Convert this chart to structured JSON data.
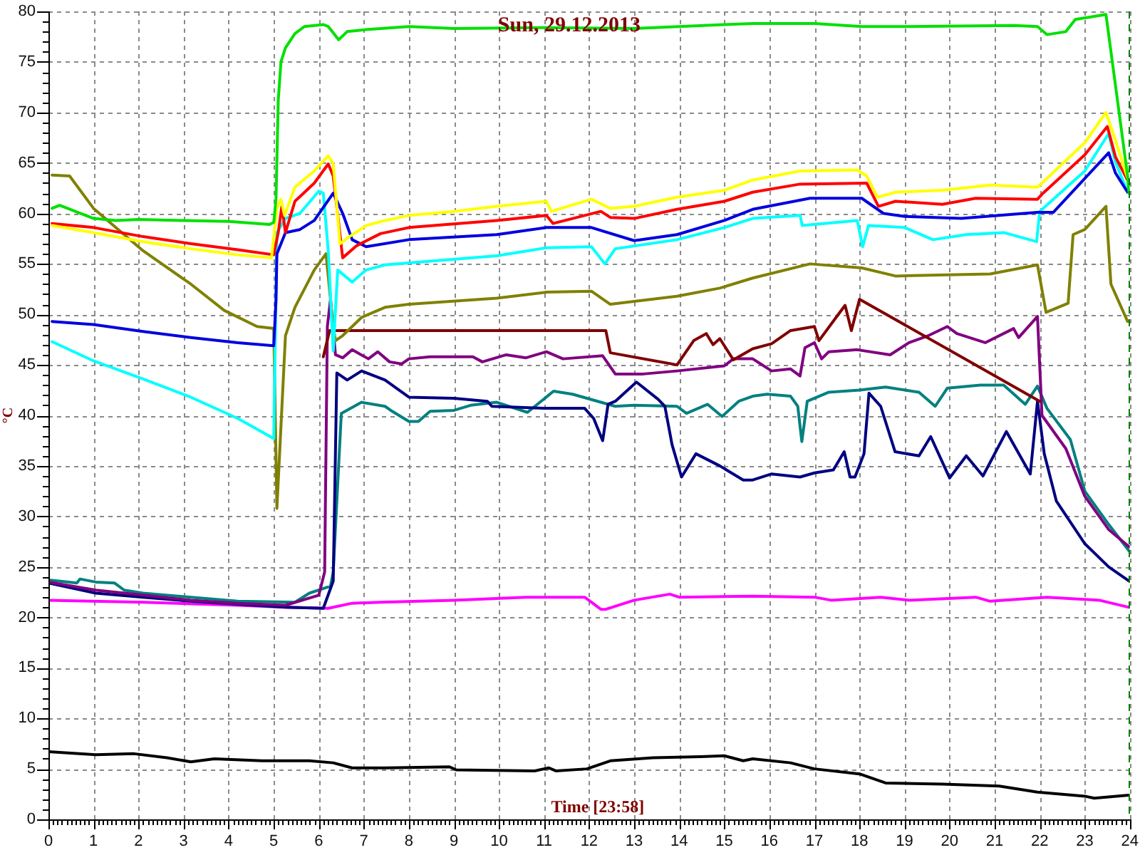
{
  "chart_data": {
    "type": "line",
    "title": "Sun, 29.12.2013",
    "xlabel": "Time [23:58]",
    "ylabel": "°C",
    "xlim": [
      0,
      24
    ],
    "ylim": [
      0,
      80
    ],
    "xticks": [
      0,
      {
        "value": 0.1,
        "label": null
      },
      {
        "value": 0.2,
        "label": null
      },
      {
        "value": 0.3,
        "label": null
      },
      {
        "value": 0.4,
        "label": null
      },
      {
        "value": 0.5,
        "label": null
      },
      {
        "value": 0.6,
        "label": null
      },
      {
        "value": 0.7,
        "label": null
      },
      {
        "value": 0.8,
        "label": null
      },
      {
        "value": 0.9,
        "label": null
      },
      1,
      {
        "value": 1.1,
        "label": null
      },
      {
        "value": 1.2,
        "label": null
      },
      {
        "value": 1.3,
        "label": null
      },
      {
        "value": 1.4,
        "label": null
      },
      {
        "value": 1.5,
        "label": null
      },
      {
        "value": 1.6,
        "label": null
      },
      {
        "value": 1.7,
        "label": null
      },
      {
        "value": 1.8,
        "label": null
      },
      {
        "value": 1.9,
        "label": null
      },
      2,
      {
        "value": 2.1,
        "label": null
      },
      {
        "value": 2.2,
        "label": null
      },
      {
        "value": 2.3,
        "label": null
      },
      {
        "value": 2.4,
        "label": null
      },
      {
        "value": 2.5,
        "label": null
      },
      {
        "value": 2.6,
        "label": null
      },
      {
        "value": 2.7,
        "label": null
      },
      {
        "value": 2.8,
        "label": null
      },
      {
        "value": 2.9,
        "label": null
      },
      3,
      {
        "value": 3.1,
        "label": null
      },
      {
        "value": 3.2,
        "label": null
      },
      {
        "value": 3.3,
        "label": null
      },
      {
        "value": 3.4,
        "label": null
      },
      {
        "value": 3.5,
        "label": null
      },
      {
        "value": 3.6,
        "label": null
      },
      {
        "value": 3.7,
        "label": null
      },
      {
        "value": 3.8,
        "label": null
      },
      {
        "value": 3.9,
        "label": null
      },
      4,
      {
        "value": 4.1,
        "label": null
      },
      {
        "value": 4.2,
        "label": null
      },
      {
        "value": 4.3,
        "label": null
      },
      {
        "value": 4.4,
        "label": null
      },
      {
        "value": 4.5,
        "label": null
      },
      {
        "value": 4.6,
        "label": null
      },
      {
        "value": 4.7,
        "label": null
      },
      {
        "value": 4.8,
        "label": null
      },
      {
        "value": 4.9,
        "label": null
      },
      5,
      {
        "value": 5.1,
        "label": null
      },
      {
        "value": 5.2,
        "label": null
      },
      {
        "value": 5.3,
        "label": null
      },
      {
        "value": 5.4,
        "label": null
      },
      {
        "value": 5.5,
        "label": null
      },
      {
        "value": 5.6,
        "label": null
      },
      {
        "value": 5.7,
        "label": null
      },
      {
        "value": 5.8,
        "label": null
      },
      {
        "value": 5.9,
        "label": null
      },
      6,
      {
        "value": 6.1,
        "label": null
      },
      {
        "value": 6.2,
        "label": null
      },
      {
        "value": 6.3,
        "label": null
      },
      {
        "value": 6.4,
        "label": null
      },
      {
        "value": 6.5,
        "label": null
      },
      {
        "value": 6.6,
        "label": null
      },
      {
        "value": 6.7,
        "label": null
      },
      {
        "value": 6.8,
        "label": null
      },
      {
        "value": 6.9,
        "label": null
      },
      7,
      {
        "value": 7.1,
        "label": null
      },
      {
        "value": 7.2,
        "label": null
      },
      {
        "value": 7.3,
        "label": null
      },
      {
        "value": 7.4,
        "label": null
      },
      {
        "value": 7.5,
        "label": null
      },
      {
        "value": 7.6,
        "label": null
      },
      {
        "value": 7.7,
        "label": null
      },
      {
        "value": 7.8,
        "label": null
      },
      {
        "value": 7.9,
        "label": null
      },
      8,
      {
        "value": 8.1,
        "label": null
      },
      {
        "value": 8.2,
        "label": null
      },
      {
        "value": 8.3,
        "label": null
      },
      {
        "value": 8.4,
        "label": null
      },
      {
        "value": 8.5,
        "label": null
      },
      {
        "value": 8.6,
        "label": null
      },
      {
        "value": 8.7,
        "label": null
      },
      {
        "value": 8.8,
        "label": null
      },
      {
        "value": 8.9,
        "label": null
      },
      9,
      {
        "value": 9.1,
        "label": null
      },
      {
        "value": 9.2,
        "label": null
      },
      {
        "value": 9.3,
        "label": null
      },
      {
        "value": 9.4,
        "label": null
      },
      {
        "value": 9.5,
        "label": null
      },
      {
        "value": 9.6,
        "label": null
      },
      {
        "value": 9.7,
        "label": null
      },
      {
        "value": 9.8,
        "label": null
      },
      {
        "value": 9.9,
        "label": null
      },
      10,
      {
        "value": 10.1,
        "label": null
      },
      {
        "value": 10.2,
        "label": null
      },
      {
        "value": 10.3,
        "label": null
      },
      {
        "value": 10.4,
        "label": null
      },
      {
        "value": 10.5,
        "label": null
      },
      {
        "value": 10.6,
        "label": null
      },
      {
        "value": 10.7,
        "label": null
      },
      {
        "value": 10.8,
        "label": null
      },
      {
        "value": 10.9,
        "label": null
      },
      11,
      {
        "value": 11.1,
        "label": null
      },
      {
        "value": 11.2,
        "label": null
      },
      {
        "value": 11.3,
        "label": null
      },
      {
        "value": 11.4,
        "label": null
      },
      {
        "value": 11.5,
        "label": null
      },
      {
        "value": 11.6,
        "label": null
      },
      {
        "value": 11.7,
        "label": null
      },
      {
        "value": 11.8,
        "label": null
      },
      {
        "value": 11.9,
        "label": null
      },
      12,
      {
        "value": 12.1,
        "label": null
      },
      {
        "value": 12.2,
        "label": null
      },
      {
        "value": 12.3,
        "label": null
      },
      {
        "value": 12.4,
        "label": null
      },
      {
        "value": 12.5,
        "label": null
      },
      {
        "value": 12.6,
        "label": null
      },
      {
        "value": 12.7,
        "label": null
      },
      {
        "value": 12.8,
        "label": null
      },
      {
        "value": 12.9,
        "label": null
      },
      13,
      {
        "value": 13.1,
        "label": null
      },
      {
        "value": 13.2,
        "label": null
      },
      {
        "value": 13.3,
        "label": null
      },
      {
        "value": 13.4,
        "label": null
      },
      {
        "value": 13.5,
        "label": null
      },
      {
        "value": 13.6,
        "label": null
      },
      {
        "value": 13.7,
        "label": null
      },
      {
        "value": 13.8,
        "label": null
      },
      {
        "value": 13.9,
        "label": null
      },
      14,
      {
        "value": 14.1,
        "label": null
      },
      {
        "value": 14.2,
        "label": null
      },
      {
        "value": 14.3,
        "label": null
      },
      {
        "value": 14.4,
        "label": null
      },
      {
        "value": 14.5,
        "label": null
      },
      {
        "value": 14.6,
        "label": null
      },
      {
        "value": 14.7,
        "label": null
      },
      {
        "value": 14.8,
        "label": null
      },
      {
        "value": 14.9,
        "label": null
      },
      15,
      {
        "value": 15.1,
        "label": null
      },
      {
        "value": 15.2,
        "label": null
      },
      {
        "value": 15.3,
        "label": null
      },
      {
        "value": 15.4,
        "label": null
      },
      {
        "value": 15.5,
        "label": null
      },
      {
        "value": 15.6,
        "label": null
      },
      {
        "value": 15.7,
        "label": null
      },
      {
        "value": 15.8,
        "label": null
      },
      {
        "value": 15.9,
        "label": null
      },
      16,
      {
        "value": 16.1,
        "label": null
      },
      {
        "value": 16.2,
        "label": null
      },
      {
        "value": 16.3,
        "label": null
      },
      {
        "value": 16.4,
        "label": null
      },
      {
        "value": 16.5,
        "label": null
      },
      {
        "value": 16.6,
        "label": null
      },
      {
        "value": 16.7,
        "label": null
      },
      {
        "value": 16.8,
        "label": null
      },
      {
        "value": 16.9,
        "label": null
      },
      17,
      {
        "value": 17.1,
        "label": null
      },
      {
        "value": 17.2,
        "label": null
      },
      {
        "value": 17.3,
        "label": null
      },
      {
        "value": 17.4,
        "label": null
      },
      {
        "value": 17.5,
        "label": null
      },
      {
        "value": 17.6,
        "label": null
      },
      {
        "value": 17.7,
        "label": null
      },
      {
        "value": 17.8,
        "label": null
      },
      {
        "value": 17.9,
        "label": null
      },
      18,
      {
        "value": 18.1,
        "label": null
      },
      {
        "value": 18.2,
        "label": null
      },
      {
        "value": 18.3,
        "label": null
      },
      {
        "value": 18.4,
        "label": null
      },
      {
        "value": 18.5,
        "label": null
      },
      {
        "value": 18.6,
        "label": null
      },
      {
        "value": 18.7,
        "label": null
      },
      {
        "value": 18.8,
        "label": null
      },
      {
        "value": 18.9,
        "label": null
      },
      19,
      {
        "value": 19.1,
        "label": null
      },
      {
        "value": 19.2,
        "label": null
      },
      {
        "value": 19.3,
        "label": null
      },
      {
        "value": 19.4,
        "label": null
      },
      {
        "value": 19.5,
        "label": null
      },
      {
        "value": 19.6,
        "label": null
      },
      {
        "value": 19.7,
        "label": null
      },
      {
        "value": 19.8,
        "label": null
      },
      {
        "value": 19.9,
        "label": null
      },
      20,
      {
        "value": 20.1,
        "label": null
      },
      {
        "value": 20.2,
        "label": null
      },
      {
        "value": 20.3,
        "label": null
      },
      {
        "value": 20.4,
        "label": null
      },
      {
        "value": 20.5,
        "label": null
      },
      {
        "value": 20.6,
        "label": null
      },
      {
        "value": 20.7,
        "label": null
      },
      {
        "value": 20.8,
        "label": null
      },
      {
        "value": 20.9,
        "label": null
      },
      21,
      {
        "value": 21.1,
        "label": null
      },
      {
        "value": 21.2,
        "label": null
      },
      {
        "value": 21.3,
        "label": null
      },
      {
        "value": 21.4,
        "label": null
      },
      {
        "value": 21.5,
        "label": null
      },
      {
        "value": 21.6,
        "label": null
      },
      {
        "value": 21.7,
        "label": null
      },
      {
        "value": 21.8,
        "label": null
      },
      {
        "value": 21.9,
        "label": null
      },
      22,
      {
        "value": 22.1,
        "label": null
      },
      {
        "value": 22.2,
        "label": null
      },
      {
        "value": 22.3,
        "label": null
      },
      {
        "value": 22.4,
        "label": null
      },
      {
        "value": 22.5,
        "label": null
      },
      {
        "value": 22.6,
        "label": null
      },
      {
        "value": 22.7,
        "label": null
      },
      {
        "value": 22.8,
        "label": null
      },
      {
        "value": 22.9,
        "label": null
      },
      23,
      {
        "value": 23.1,
        "label": null
      },
      {
        "value": 23.2,
        "label": null
      },
      {
        "value": 23.3,
        "label": null
      },
      {
        "value": 23.4,
        "label": null
      },
      {
        "value": 23.5,
        "label": null
      },
      {
        "value": 23.6,
        "label": null
      },
      {
        "value": 23.7,
        "label": null
      },
      {
        "value": 23.8,
        "label": null
      },
      {
        "value": 23.9,
        "label": null
      },
      24
    ],
    "yticks": [
      0,
      {
        "value": 1,
        "label": null
      },
      {
        "value": 2,
        "label": null
      },
      {
        "value": 3,
        "label": null
      },
      {
        "value": 4,
        "label": null
      },
      5,
      {
        "value": 6,
        "label": null
      },
      {
        "value": 7,
        "label": null
      },
      {
        "value": 8,
        "label": null
      },
      {
        "value": 9,
        "label": null
      },
      10,
      {
        "value": 11,
        "label": null
      },
      {
        "value": 12,
        "label": null
      },
      {
        "value": 13,
        "label": null
      },
      {
        "value": 14,
        "label": null
      },
      15,
      {
        "value": 16,
        "label": null
      },
      {
        "value": 17,
        "label": null
      },
      {
        "value": 18,
        "label": null
      },
      {
        "value": 19,
        "label": null
      },
      20,
      {
        "value": 21,
        "label": null
      },
      {
        "value": 22,
        "label": null
      },
      {
        "value": 23,
        "label": null
      },
      {
        "value": 24,
        "label": null
      },
      25,
      {
        "value": 26,
        "label": null
      },
      {
        "value": 27,
        "label": null
      },
      {
        "value": 28,
        "label": null
      },
      {
        "value": 29,
        "label": null
      },
      30,
      {
        "value": 31,
        "label": null
      },
      {
        "value": 32,
        "label": null
      },
      {
        "value": 33,
        "label": null
      },
      {
        "value": 34,
        "label": null
      },
      35,
      {
        "value": 36,
        "label": null
      },
      {
        "value": 37,
        "label": null
      },
      {
        "value": 38,
        "label": null
      },
      {
        "value": 39,
        "label": null
      },
      40,
      {
        "value": 41,
        "label": null
      },
      {
        "value": 42,
        "label": null
      },
      {
        "value": 43,
        "label": null
      },
      {
        "value": 44,
        "label": null
      },
      45,
      {
        "value": 46,
        "label": null
      },
      {
        "value": 47,
        "label": null
      },
      {
        "value": 48,
        "label": null
      },
      {
        "value": 49,
        "label": null
      },
      50,
      {
        "value": 51,
        "label": null
      },
      {
        "value": 52,
        "label": null
      },
      {
        "value": 53,
        "label": null
      },
      {
        "value": 54,
        "label": null
      },
      55,
      {
        "value": 56,
        "label": null
      },
      {
        "value": 57,
        "label": null
      },
      {
        "value": 58,
        "label": null
      },
      {
        "value": 59,
        "label": null
      },
      60,
      {
        "value": 61,
        "label": null
      },
      {
        "value": 62,
        "label": null
      },
      {
        "value": 63,
        "label": null
      },
      {
        "value": 64,
        "label": null
      },
      65,
      {
        "value": 66,
        "label": null
      },
      {
        "value": 67,
        "label": null
      },
      {
        "value": 68,
        "label": null
      },
      {
        "value": 69,
        "label": null
      },
      70,
      {
        "value": 71,
        "label": null
      },
      {
        "value": 72,
        "label": null
      },
      {
        "value": 73,
        "label": null
      },
      {
        "value": 74,
        "label": null
      },
      75,
      {
        "value": 76,
        "label": null
      },
      {
        "value": 77,
        "label": null
      },
      {
        "value": 78,
        "label": null
      },
      {
        "value": 79,
        "label": null
      },
      80
    ],
    "grid": true,
    "legend": false,
    "marker": "none",
    "line_style": "solid",
    "ref_lines": [
      {
        "axis": "x",
        "value": 23.97,
        "color": "#008000",
        "line_style": "dashed"
      }
    ],
    "series": [
      {
        "color": "#00e000",
        "x": [
          0.08,
          0.25,
          1,
          1.5,
          2,
          3,
          4,
          4.9,
          5.0,
          5.05,
          5.1,
          5.16,
          5.26,
          5.47,
          5.68,
          6.1,
          6.21,
          6.44,
          6.63,
          7.05,
          8,
          9,
          11,
          13,
          15,
          15.63,
          17,
          18.05,
          19.1,
          21.42,
          21.95,
          22.16,
          22.58,
          22.79,
          23.47,
          23.95,
          23.98
        ],
        "values": [
          60.5,
          60.8,
          59.5,
          59.3,
          59.4,
          59.3,
          59.2,
          58.9,
          59.1,
          61.4,
          71.2,
          75.0,
          76.4,
          77.8,
          78.5,
          78.7,
          78.5,
          77.2,
          78.0,
          78.2,
          78.5,
          78.3,
          78.4,
          78.3,
          78.7,
          78.8,
          78.8,
          78.5,
          78.5,
          78.6,
          78.5,
          77.7,
          78.0,
          79.2,
          79.7,
          63.7,
          62.0
        ]
      },
      {
        "color": "#ffff00",
        "x": [
          0.08,
          1,
          2.1,
          3.16,
          4.2,
          4.95,
          5.07,
          5.16,
          5.24,
          5.47,
          5.9,
          6.21,
          6.32,
          6.47,
          6.68,
          7.05,
          7.47,
          8,
          9,
          9.95,
          11.05,
          11.16,
          12.05,
          12.47,
          13,
          13.95,
          15,
          15.63,
          16.68,
          17.95,
          18.16,
          18.4,
          18.8,
          19.84,
          20.9,
          21.95,
          22.05,
          23,
          23.47,
          23.63,
          23.95
        ],
        "values": [
          58.8,
          58.1,
          57.2,
          56.5,
          55.9,
          55.6,
          60.5,
          61.4,
          59.8,
          62.6,
          64.2,
          65.7,
          64.9,
          57.0,
          57.7,
          58.8,
          59.3,
          59.8,
          60.2,
          60.7,
          61.2,
          60.2,
          61.4,
          60.5,
          60.7,
          61.6,
          62.3,
          63.3,
          64.2,
          64.3,
          63.7,
          61.6,
          62.1,
          62.3,
          62.8,
          62.6,
          63.0,
          67.0,
          70.0,
          67.9,
          63.5
        ]
      },
      {
        "color": "#ff0000",
        "x": [
          0.08,
          1,
          2.1,
          3.16,
          4.2,
          5,
          5.1,
          5.18,
          5.26,
          5.47,
          5.9,
          6.21,
          6.32,
          6.53,
          6.84,
          7.37,
          8,
          9.95,
          11.05,
          11.2,
          12.26,
          12.47,
          13,
          13.95,
          15,
          15.63,
          16.68,
          18.16,
          18.42,
          18.8,
          19.84,
          20.58,
          21.95,
          22.05,
          23,
          23.5,
          23.68,
          23.95
        ],
        "values": [
          59.0,
          58.6,
          57.7,
          57.0,
          56.4,
          55.9,
          58.1,
          60.7,
          58.1,
          61.2,
          63.0,
          64.9,
          63.7,
          55.6,
          56.8,
          58.0,
          58.6,
          59.3,
          59.8,
          59.0,
          60.2,
          59.6,
          59.5,
          60.4,
          61.2,
          62.1,
          62.9,
          63.0,
          60.7,
          61.2,
          60.9,
          61.5,
          61.4,
          61.9,
          65.8,
          68.6,
          65.6,
          63.3
        ]
      },
      {
        "color": "#0000e0",
        "x": [
          0.08,
          1,
          2.1,
          3.16,
          4.2,
          5,
          5.05,
          5.07,
          5.26,
          5.58,
          5.9,
          6.32,
          6.53,
          6.74,
          7.05,
          8,
          9.95,
          11.05,
          12.05,
          13,
          13.95,
          15,
          15.63,
          16.9,
          18.05,
          18.53,
          19,
          20.26,
          21.95,
          22.3,
          23.53,
          23.68,
          23.95
        ],
        "values": [
          49.3,
          49.0,
          48.3,
          47.7,
          47.2,
          46.9,
          51.4,
          56.0,
          58.1,
          58.4,
          59.3,
          62.0,
          60.0,
          57.4,
          56.7,
          57.4,
          57.9,
          58.6,
          58.6,
          57.3,
          57.9,
          59.3,
          60.4,
          61.5,
          61.5,
          60.0,
          59.7,
          59.5,
          60.1,
          60.1,
          66.0,
          64.0,
          62.1
        ]
      },
      {
        "color": "#00ffff",
        "x": [
          0.08,
          1,
          2.1,
          3.16,
          4.2,
          5,
          5.07,
          5.26,
          5.58,
          6,
          6.1,
          6.21,
          6.32,
          6.42,
          6.74,
          7.05,
          7.47,
          8,
          9.95,
          11.05,
          12.05,
          12.35,
          12.58,
          13.95,
          15,
          15.63,
          16.68,
          16.73,
          17.95,
          18.07,
          18.2,
          19,
          19.63,
          20.37,
          21.2,
          21.93,
          22,
          23,
          23.53,
          23.68,
          23.95
        ],
        "values": [
          47.3,
          45.4,
          43.6,
          41.8,
          39.7,
          37.7,
          58.1,
          59.5,
          60.0,
          62.2,
          62.0,
          56.3,
          46.4,
          54.4,
          53.2,
          54.4,
          54.9,
          55.1,
          55.8,
          56.6,
          56.7,
          55.0,
          56.5,
          57.4,
          58.6,
          59.5,
          59.8,
          58.8,
          59.3,
          56.7,
          58.8,
          58.6,
          57.4,
          57.9,
          58.1,
          57.2,
          60.2,
          64.2,
          67.9,
          65.1,
          62.1
        ]
      },
      {
        "color": "#808000",
        "x": [
          0.08,
          0.47,
          1,
          2.1,
          3.16,
          3.9,
          4.63,
          5,
          5.07,
          5.26,
          5.47,
          5.9,
          6.16,
          6.32,
          6.37,
          6.53,
          6.95,
          7.47,
          8,
          9.95,
          11.05,
          12.05,
          12.47,
          13.95,
          14.9,
          15.63,
          16.9,
          18.05,
          18.8,
          20.9,
          21.95,
          22.14,
          22.63,
          22.74,
          23,
          23.47,
          23.58,
          23.95
        ],
        "values": [
          63.8,
          63.7,
          60.5,
          56.3,
          53.0,
          50.4,
          48.8,
          48.6,
          30.8,
          47.9,
          50.7,
          54.4,
          56.0,
          48.8,
          47.4,
          47.9,
          49.7,
          50.7,
          51.0,
          51.6,
          52.2,
          52.3,
          51.0,
          51.8,
          52.6,
          53.6,
          55.0,
          54.6,
          53.8,
          54.0,
          54.9,
          50.2,
          51.1,
          57.9,
          58.4,
          60.7,
          53.0,
          49.3
        ]
      },
      {
        "color": "#800000",
        "x": [
          6.1,
          6.24,
          12.37,
          12.47,
          13.95,
          14.32,
          14.6,
          14.75,
          14.9,
          15.2,
          15.63,
          16.05,
          16.47,
          17,
          17.1,
          17.53,
          17.68,
          17.82,
          18,
          22
        ],
        "values": [
          45.8,
          48.4,
          48.4,
          46.2,
          45.0,
          47.4,
          48.1,
          47.0,
          47.6,
          45.5,
          46.6,
          47.1,
          48.4,
          48.8,
          47.4,
          50.0,
          50.9,
          48.4,
          51.5,
          41.4
        ]
      },
      {
        "color": "#800080",
        "x": [
          0,
          1.05,
          2.1,
          3.16,
          4.2,
          5.26,
          6,
          6.13,
          6.19,
          6.26,
          6.37,
          6.53,
          6.74,
          7.1,
          7.31,
          7.57,
          7.84,
          8,
          8.47,
          9.42,
          9.63,
          10.16,
          10.6,
          11.05,
          11.42,
          12.3,
          12.58,
          13.2,
          13.95,
          15,
          15.2,
          15.63,
          16.05,
          16.47,
          16.68,
          16.79,
          17,
          17.16,
          17.32,
          17.95,
          18.68,
          19.1,
          19.53,
          19.95,
          20.16,
          20.79,
          21.42,
          21.53,
          21.95,
          22.05,
          22.58,
          23,
          23.53,
          23.98
        ],
        "values": [
          23.5,
          22.7,
          22.2,
          21.7,
          21.4,
          21.2,
          22.2,
          24.5,
          48.8,
          51.5,
          46.0,
          45.7,
          46.5,
          45.6,
          46.3,
          45.3,
          45.1,
          45.6,
          45.8,
          45.8,
          45.3,
          46.0,
          45.7,
          46.3,
          45.6,
          45.9,
          44.1,
          44.1,
          44.4,
          44.9,
          45.6,
          45.6,
          44.4,
          44.6,
          43.9,
          46.7,
          47.2,
          45.6,
          46.3,
          46.5,
          46.0,
          47.2,
          47.9,
          48.8,
          48.1,
          47.2,
          48.6,
          47.7,
          49.8,
          40.0,
          36.7,
          32.0,
          28.7,
          27.0
        ]
      },
      {
        "color": "#000080",
        "x": [
          0,
          1.05,
          2.1,
          3.16,
          4.2,
          5.26,
          6.1,
          6.32,
          6.4,
          6.63,
          6.95,
          7.47,
          8,
          9,
          9.74,
          9.84,
          11,
          11.9,
          12.1,
          12.3,
          12.42,
          12.58,
          13.05,
          13.53,
          13.68,
          13.84,
          14.05,
          14.37,
          14.9,
          15.42,
          15.63,
          16.05,
          16.68,
          17,
          17.42,
          17.66,
          17.79,
          17.9,
          18.1,
          18.21,
          18.47,
          18.79,
          19.32,
          19.58,
          20,
          20.37,
          20.74,
          21.26,
          21.79,
          21.95,
          22.1,
          22.37,
          23,
          23.53,
          23.98
        ],
        "values": [
          23.4,
          22.4,
          22.0,
          21.6,
          21.3,
          21.0,
          20.9,
          23.6,
          44.2,
          43.5,
          44.4,
          43.5,
          41.8,
          41.7,
          41.4,
          40.9,
          40.7,
          40.7,
          39.7,
          37.5,
          41.1,
          41.4,
          43.3,
          41.6,
          40.9,
          37.1,
          33.9,
          36.2,
          35.0,
          33.6,
          33.6,
          34.2,
          33.9,
          34.3,
          34.6,
          36.4,
          33.9,
          33.9,
          36.2,
          42.2,
          40.9,
          36.4,
          36.0,
          37.9,
          33.8,
          36.0,
          34.0,
          38.4,
          34.2,
          41.4,
          36.2,
          31.5,
          27.3,
          25.0,
          23.6
        ]
      },
      {
        "color": "#008080",
        "x": [
          0,
          0.63,
          0.7,
          1.05,
          1.47,
          1.68,
          2.1,
          3.16,
          4.2,
          5.47,
          5.79,
          6.26,
          6.32,
          6.5,
          6.95,
          7.47,
          7.63,
          8,
          8.21,
          8.47,
          9,
          9.37,
          9.95,
          10.63,
          11.21,
          11.63,
          12.58,
          13,
          13.95,
          14.16,
          14.63,
          14.95,
          15.32,
          15.63,
          15.95,
          16.47,
          16.63,
          16.72,
          16.84,
          17.32,
          18,
          18.58,
          19.32,
          19.68,
          19.95,
          20.68,
          21.2,
          21.68,
          21.95,
          22.16,
          22.68,
          23,
          23.53,
          23.98
        ],
        "values": [
          23.7,
          23.4,
          23.8,
          23.5,
          23.4,
          22.7,
          22.4,
          22.0,
          21.6,
          21.5,
          22.4,
          23.1,
          24.5,
          40.2,
          41.3,
          40.9,
          40.4,
          39.4,
          39.4,
          40.4,
          40.5,
          41.0,
          41.3,
          40.3,
          42.4,
          42.1,
          40.9,
          41.0,
          40.9,
          40.2,
          41.1,
          39.9,
          41.4,
          41.9,
          42.1,
          41.9,
          40.9,
          37.4,
          41.4,
          42.3,
          42.5,
          42.8,
          42.3,
          40.9,
          42.7,
          43.0,
          43.0,
          41.1,
          42.9,
          40.7,
          37.6,
          32.5,
          29.2,
          26.6
        ]
      },
      {
        "color": "#ff00ff",
        "x": [
          0,
          2.1,
          4.2,
          5.26,
          6.21,
          6.74,
          7.37,
          9,
          10.6,
          11.9,
          12.26,
          12.37,
          13,
          13.79,
          14,
          15.63,
          17,
          17.37,
          18.47,
          19.1,
          20.58,
          20.9,
          22.16,
          23.32,
          23.98
        ],
        "values": [
          21.7,
          21.5,
          21.2,
          21.0,
          20.9,
          21.4,
          21.5,
          21.7,
          22.0,
          22.0,
          20.8,
          20.8,
          21.7,
          22.3,
          22.0,
          22.1,
          22.0,
          21.7,
          22.0,
          21.7,
          22.0,
          21.6,
          22.0,
          21.7,
          21.0
        ]
      },
      {
        "color": "#000000",
        "x": [
          0,
          1.05,
          1.9,
          2.63,
          3.16,
          3.68,
          4.74,
          5.79,
          6.32,
          6.74,
          7.47,
          8.9,
          9.05,
          10.79,
          11.1,
          11.26,
          11.95,
          12.47,
          13.42,
          14.47,
          15,
          15.42,
          15.63,
          16.47,
          17,
          18,
          18.58,
          19.84,
          21.1,
          21.95,
          23,
          23.21,
          23.98
        ],
        "values": [
          6.7,
          6.4,
          6.5,
          6.1,
          5.7,
          6.0,
          5.8,
          5.8,
          5.6,
          5.1,
          5.1,
          5.2,
          4.9,
          4.8,
          5.1,
          4.8,
          5.0,
          5.8,
          6.1,
          6.2,
          6.3,
          5.8,
          6.0,
          5.6,
          5.0,
          4.5,
          3.6,
          3.5,
          3.3,
          2.7,
          2.3,
          2.1,
          2.4
        ]
      }
    ]
  }
}
